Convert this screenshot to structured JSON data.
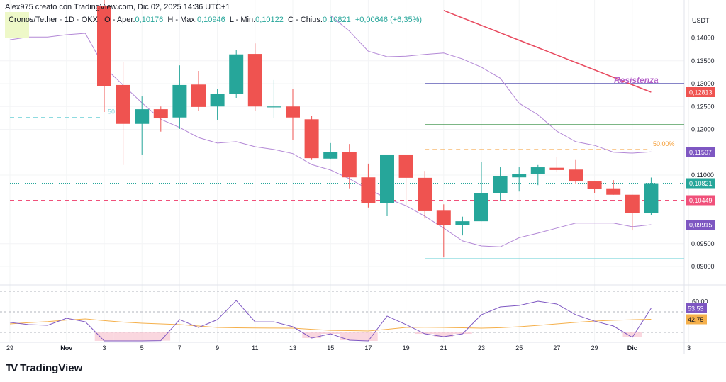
{
  "header": {
    "attribution": "Alex975 creato con TradingView.com, Dic 02, 2025 14:36 UTC+1",
    "symbol": "Cronos/Tether · 1D · OKX",
    "open_label": "O - Aper.",
    "open": "0,10176",
    "high_label": "H - Max.",
    "high": "0,10946",
    "low_label": "L - Min.",
    "low": "0,10122",
    "close_label": "C - Chius.",
    "close": "0,10821",
    "change": "+0,00646 (+6,35%)"
  },
  "logo": {
    "text": "TradingView"
  },
  "colors": {
    "up": "#26a69a",
    "down": "#ef5350",
    "band": "#b388d6",
    "rsi": "#7e57c2",
    "rsi_ma": "#f5b04b",
    "resistance": "#e84a5f",
    "purple_line": "#3f3aa8",
    "green_line": "#2e8b3c",
    "fib": "#f59a2e",
    "support": "#7fd6dc",
    "price_line": "#f0507a"
  },
  "chart_data": [
    {
      "type": "candlestick",
      "currency": "USDT",
      "ylim": [
        0.0885,
        0.1485
      ],
      "y_ticks": [
        "0,14000",
        "0,13500",
        "0,13000",
        "0,12500",
        "0,12000",
        "0,11000",
        "0,09500",
        "0,09000"
      ],
      "y_tick_values": [
        0.14,
        0.135,
        0.13,
        0.125,
        0.12,
        0.11,
        0.095,
        0.09
      ],
      "x_labels": [
        {
          "date": "Oct 29",
          "label": "29"
        },
        {
          "date": "Nov 1",
          "label": "Nov"
        },
        {
          "date": "Nov 3",
          "label": "3"
        },
        {
          "date": "Nov 5",
          "label": "5"
        },
        {
          "date": "Nov 7",
          "label": "7"
        },
        {
          "date": "Nov 9",
          "label": "9"
        },
        {
          "date": "Nov 11",
          "label": "11"
        },
        {
          "date": "Nov 13",
          "label": "13"
        },
        {
          "date": "Nov 15",
          "label": "15"
        },
        {
          "date": "Nov 17",
          "label": "17"
        },
        {
          "date": "Nov 19",
          "label": "19"
        },
        {
          "date": "Nov 21",
          "label": "21"
        },
        {
          "date": "Nov 23",
          "label": "23"
        },
        {
          "date": "Nov 25",
          "label": "25"
        },
        {
          "date": "Nov 27",
          "label": "27"
        },
        {
          "date": "Nov 29",
          "label": "29"
        },
        {
          "date": "Dec 1",
          "label": "Dic"
        },
        {
          "date": "Dec 3",
          "label": "3"
        }
      ],
      "dates": [
        "Oct 29",
        "Oct 30",
        "Oct 31",
        "Nov 1",
        "Nov 2",
        "Nov 3",
        "Nov 4",
        "Nov 5",
        "Nov 6",
        "Nov 7",
        "Nov 8",
        "Nov 9",
        "Nov 10",
        "Nov 11",
        "Nov 12",
        "Nov 13",
        "Nov 14",
        "Nov 15",
        "Nov 16",
        "Nov 17",
        "Nov 18",
        "Nov 19",
        "Nov 20",
        "Nov 21",
        "Nov 22",
        "Nov 23",
        "Nov 24",
        "Nov 25",
        "Nov 26",
        "Nov 27",
        "Nov 28",
        "Nov 29",
        "Nov 30",
        "Dec 1",
        "Dec 2"
      ],
      "candles": [
        {
          "date": "Nov 3",
          "o": 0.147,
          "h": 0.15,
          "l": 0.1238,
          "c": 0.1295
        },
        {
          "date": "Nov 4",
          "o": 0.1297,
          "h": 0.1347,
          "l": 0.1122,
          "c": 0.1212
        },
        {
          "date": "Nov 5",
          "o": 0.1212,
          "h": 0.1272,
          "l": 0.1145,
          "c": 0.1244
        },
        {
          "date": "Nov 6",
          "o": 0.1244,
          "h": 0.125,
          "l": 0.1195,
          "c": 0.1224
        },
        {
          "date": "Nov 7",
          "o": 0.1226,
          "h": 0.134,
          "l": 0.1201,
          "c": 0.1297
        },
        {
          "date": "Nov 8",
          "o": 0.1298,
          "h": 0.1328,
          "l": 0.1241,
          "c": 0.1249
        },
        {
          "date": "Nov 9",
          "o": 0.125,
          "h": 0.1288,
          "l": 0.1221,
          "c": 0.1277
        },
        {
          "date": "Nov 10",
          "o": 0.1277,
          "h": 0.1373,
          "l": 0.1269,
          "c": 0.1364
        },
        {
          "date": "Nov 11",
          "o": 0.1365,
          "h": 0.1388,
          "l": 0.1241,
          "c": 0.125
        },
        {
          "date": "Nov 12",
          "o": 0.125,
          "h": 0.1308,
          "l": 0.1224,
          "c": 0.125
        },
        {
          "date": "Nov 13",
          "o": 0.125,
          "h": 0.1289,
          "l": 0.1176,
          "c": 0.1226
        },
        {
          "date": "Nov 14",
          "o": 0.1222,
          "h": 0.123,
          "l": 0.1133,
          "c": 0.1137
        },
        {
          "date": "Nov 15",
          "o": 0.1136,
          "h": 0.117,
          "l": 0.1134,
          "c": 0.1151
        },
        {
          "date": "Nov 16",
          "o": 0.1151,
          "h": 0.1168,
          "l": 0.1071,
          "c": 0.1095
        },
        {
          "date": "Nov 17",
          "o": 0.1095,
          "h": 0.1125,
          "l": 0.1029,
          "c": 0.1038
        },
        {
          "date": "Nov 18",
          "o": 0.1038,
          "h": 0.1145,
          "l": 0.101,
          "c": 0.1145
        },
        {
          "date": "Nov 19",
          "o": 0.1145,
          "h": 0.1145,
          "l": 0.1032,
          "c": 0.1094
        },
        {
          "date": "Nov 20",
          "o": 0.1094,
          "h": 0.1109,
          "l": 0.1005,
          "c": 0.1021
        },
        {
          "date": "Nov 21",
          "o": 0.1022,
          "h": 0.1036,
          "l": 0.092,
          "c": 0.099
        },
        {
          "date": "Nov 22",
          "o": 0.099,
          "h": 0.1009,
          "l": 0.0968,
          "c": 0.0999
        },
        {
          "date": "Nov 23",
          "o": 0.0999,
          "h": 0.1128,
          "l": 0.0999,
          "c": 0.1061
        },
        {
          "date": "Nov 24",
          "o": 0.1061,
          "h": 0.1117,
          "l": 0.1044,
          "c": 0.1097
        },
        {
          "date": "Nov 25",
          "o": 0.1095,
          "h": 0.1117,
          "l": 0.1064,
          "c": 0.1102
        },
        {
          "date": "Nov 26",
          "o": 0.1102,
          "h": 0.1122,
          "l": 0.1078,
          "c": 0.1117
        },
        {
          "date": "Nov 27",
          "o": 0.1116,
          "h": 0.114,
          "l": 0.1106,
          "c": 0.1111
        },
        {
          "date": "Nov 28",
          "o": 0.1112,
          "h": 0.1133,
          "l": 0.108,
          "c": 0.1086
        },
        {
          "date": "Nov 29",
          "o": 0.1086,
          "h": 0.1086,
          "l": 0.106,
          "c": 0.1069
        },
        {
          "date": "Nov 30",
          "o": 0.1071,
          "h": 0.1089,
          "l": 0.1057,
          "c": 0.1057
        },
        {
          "date": "Dec 1",
          "o": 0.1057,
          "h": 0.1057,
          "l": 0.0979,
          "c": 0.1017
        },
        {
          "date": "Dec 2",
          "o": 0.10176,
          "h": 0.10946,
          "l": 0.10122,
          "c": 0.10821
        }
      ],
      "lower_band": [
        0.1396,
        0.1402,
        0.1402,
        0.1407,
        0.141,
        0.1336,
        0.1297,
        0.1258,
        0.1222,
        0.1204,
        0.1182,
        0.117,
        0.1173,
        0.1162,
        0.1156,
        0.1147,
        0.1123,
        0.1111,
        0.1092,
        0.1069,
        0.1049,
        0.1033,
        0.101,
        0.0984,
        0.0956,
        0.0945,
        0.0943,
        0.0963,
        0.0973,
        0.0984,
        0.0995,
        0.0995,
        0.0995,
        0.0987,
        0.09915
      ],
      "upper_band": {
        "start": "Nov 15",
        "values": [
          0.1449,
          0.1415,
          0.1371,
          0.1359,
          0.136,
          0.1364,
          0.1367,
          0.1354,
          0.1336,
          0.1312,
          0.1257,
          0.1232,
          0.1196,
          0.1173,
          0.1165,
          0.115,
          0.1148,
          0.11507
        ]
      },
      "resistance_line": {
        "label": "Resistenza",
        "from": {
          "date": "Nov 21",
          "price": 0.146
        },
        "to": {
          "date": "Dec 2",
          "price": 0.12813
        }
      },
      "levels": [
        {
          "price": 0.13,
          "style": "solid",
          "color_key": "purple_line",
          "from": "Nov 20"
        },
        {
          "price": 0.121,
          "style": "solid",
          "color_key": "green_line",
          "from": "Nov 20"
        },
        {
          "price": 0.11557,
          "style": "dashed",
          "color_key": "fib",
          "from": "Nov 20",
          "to": "Dec 2",
          "label": "50,00%"
        },
        {
          "price": 0.0917,
          "style": "solid",
          "color_key": "support",
          "from": "Nov 20"
        },
        {
          "price": 0.1226,
          "style": "dashed",
          "color_key": "support",
          "from": "Oct 29",
          "to": "Nov 3",
          "label": "50"
        },
        {
          "price": 0.10821,
          "style": "dotted",
          "color_key": "up",
          "from": "Oct 29"
        },
        {
          "price": 0.10449,
          "style": "dashed",
          "color_key": "price_line",
          "from": "Oct 29"
        }
      ],
      "price_badges": [
        {
          "value": "0,12813",
          "price": 0.12813,
          "color_key": "down"
        },
        {
          "value": "0,11507",
          "price": 0.11507,
          "color_key": "rsi"
        },
        {
          "value": "0,10821",
          "price": 0.10821,
          "color_key": "up"
        },
        {
          "value": "0,10449",
          "price": 0.10449,
          "color_key": "price_line"
        },
        {
          "value": "0,09915",
          "price": 0.09915,
          "color_key": "rsi"
        }
      ]
    },
    {
      "type": "line",
      "ylim": [
        22,
        70
      ],
      "levels": [
        70,
        50,
        30
      ],
      "y_tick": {
        "value": "60,00",
        "level": 60
      },
      "rsi": [
        39.7,
        37.6,
        36.9,
        43.8,
        40.3,
        18,
        15,
        17,
        22,
        42.4,
        34.8,
        42.4,
        61.0,
        40.3,
        40.3,
        35.5,
        24.5,
        28.6,
        22.4,
        20,
        45.9,
        37.6,
        28.6,
        25.9,
        28.6,
        47.2,
        54.8,
        56.2,
        60.3,
        57.6,
        47.2,
        41.0,
        36.2,
        25.2,
        53.53
      ],
      "rsi_ma": [
        38.3,
        39.5,
        40.5,
        42,
        43.1,
        41.5,
        40,
        39.0,
        38.3,
        37.6,
        36.2,
        34.8,
        34.5,
        34.3,
        34.2,
        34.1,
        33,
        32,
        31.7,
        31.4,
        33,
        34.8,
        35,
        34.8,
        34.5,
        34.1,
        34.6,
        35.5,
        36.8,
        38.3,
        39.7,
        41.0,
        41.8,
        42.3,
        42.75
      ],
      "badges": [
        {
          "value": "53,53",
          "level": 53.53,
          "color_key": "rsi"
        },
        {
          "value": "42,75",
          "level": 42.75,
          "color_key": "rsi_ma"
        }
      ]
    }
  ]
}
